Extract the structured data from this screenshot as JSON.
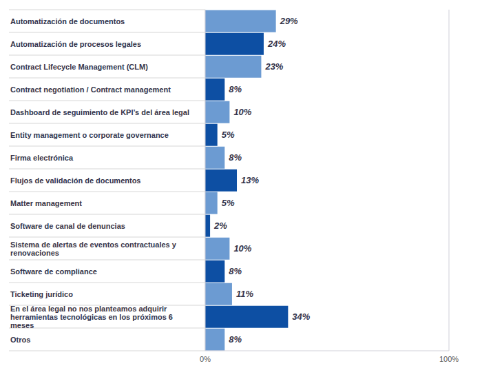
{
  "chart_data": {
    "type": "bar",
    "orientation": "horizontal",
    "categories": [
      "Automatización de documentos",
      "Automatización de procesos legales",
      "Contract Lifecycle Management (CLM)",
      "Contract negotiation / Contract management",
      "Dashboard de seguimiento de KPI’s del área legal",
      "Entity management o corporate governance",
      "Firma electrónica",
      "Flujos de validación de documentos",
      "Matter management",
      "Software de canal de denuncias",
      "Sistema de alertas de eventos contractuales y renovaciones",
      "Software de compliance",
      "Ticketing jurídico",
      "En el área legal no nos planteamos adquirir herramientas tecnológicas en los próximos 6 meses",
      "Otros"
    ],
    "values": [
      29,
      24,
      23,
      8,
      10,
      5,
      8,
      13,
      5,
      2,
      10,
      8,
      11,
      34,
      8
    ],
    "value_labels": [
      "29%",
      "24%",
      "23%",
      "8%",
      "10%",
      "5%",
      "8%",
      "13%",
      "5%",
      "2%",
      "10%",
      "8%",
      "11%",
      "34%",
      "8%"
    ],
    "colors": [
      "#6c9bd2",
      "#0d4fa3",
      "#6c9bd2",
      "#0d4fa3",
      "#6c9bd2",
      "#0d4fa3",
      "#6c9bd2",
      "#0d4fa3",
      "#6c9bd2",
      "#0d4fa3",
      "#6c9bd2",
      "#0d4fa3",
      "#6c9bd2",
      "#0d4fa3",
      "#6c9bd2"
    ],
    "xlim": [
      0,
      100
    ],
    "xticks": [
      {
        "value": 0,
        "label": "0%"
      },
      {
        "value": 100,
        "label": "100%"
      }
    ],
    "grid": true,
    "data_labels": true
  }
}
